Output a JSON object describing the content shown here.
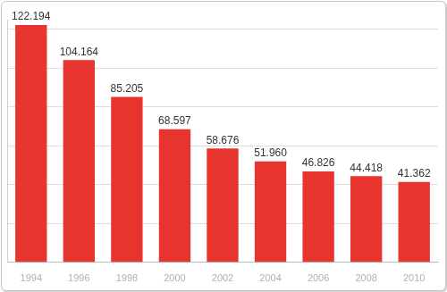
{
  "chart_data": {
    "type": "bar",
    "categories": [
      "1994",
      "1996",
      "1998",
      "2000",
      "2002",
      "2004",
      "2006",
      "2008",
      "2010"
    ],
    "values": [
      122194,
      104164,
      85205,
      68597,
      58676,
      51960,
      46826,
      44418,
      41362
    ],
    "value_labels": [
      "122.194",
      "104.164",
      "85.205",
      "68.597",
      "58.676",
      "51.960",
      "46.826",
      "44.418",
      "41.362"
    ],
    "color": "#e8342f",
    "ylim": [
      0,
      125000
    ],
    "yticks": [
      0,
      20000,
      40000,
      60000,
      80000,
      100000,
      120000
    ],
    "grid": true,
    "data_labels": true,
    "tick_labels": "x"
  }
}
